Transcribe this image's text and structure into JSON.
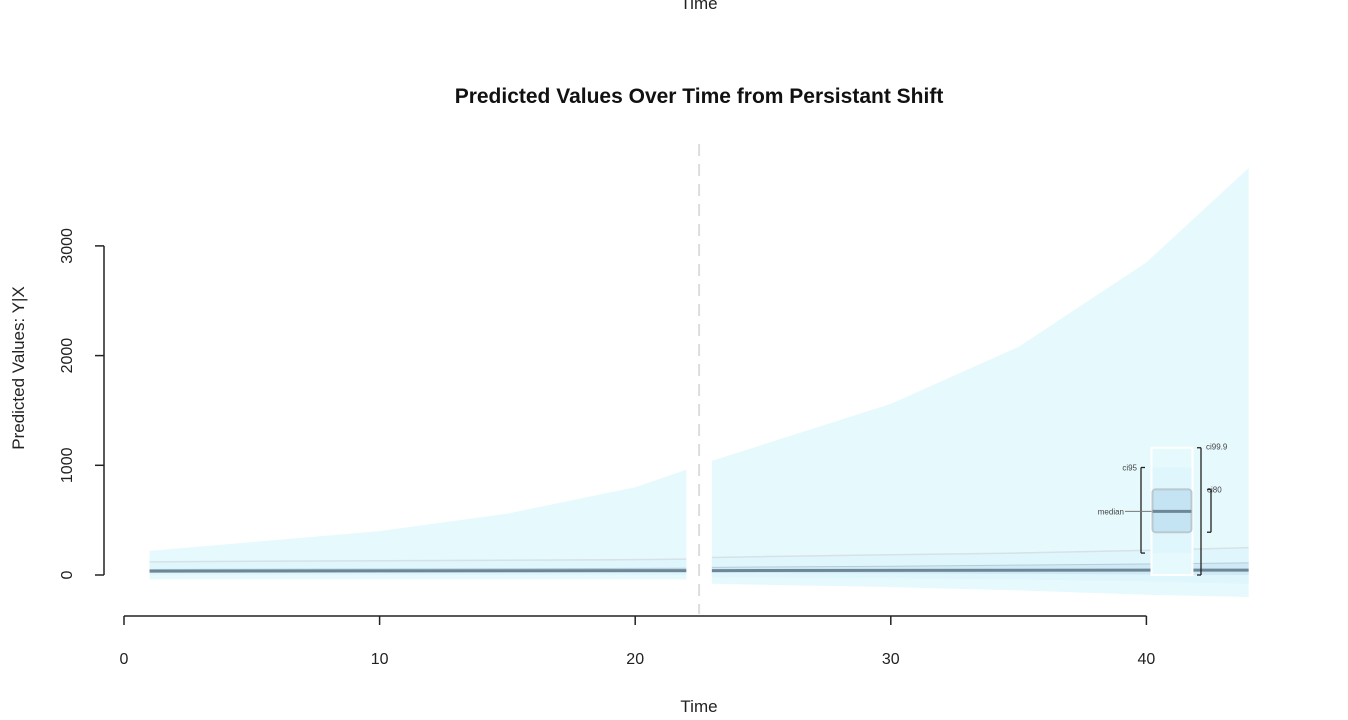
{
  "header": {
    "cropped_xlabel": "Time"
  },
  "chart_data": {
    "type": "area",
    "title": "Predicted Values Over Time from Persistant Shift",
    "xlabel": "Time",
    "ylabel": "Predicted Values: Y|X",
    "xlim": [
      0,
      44
    ],
    "ylim": [
      -200,
      3700
    ],
    "xticks": [
      0,
      10,
      20,
      30,
      40
    ],
    "yticks": [
      0,
      1000,
      2000,
      3000
    ],
    "shift_time": 22.5,
    "grid": false,
    "colors": {
      "ci99_9": "#e6f9fd",
      "ci95": "#dff6fc",
      "ci80": "#cfeaf6",
      "median": "#6e8797",
      "shift_line": "#dddddd",
      "axis": "#222222"
    },
    "series": [
      {
        "name": "ci99.9",
        "segments": [
          {
            "x": [
              1,
              5,
              10,
              15,
              20,
              22
            ],
            "upper": [
              220,
              300,
              400,
              560,
              800,
              960
            ],
            "lower": [
              -40,
              -40,
              -40,
              -40,
              -40,
              -40
            ]
          },
          {
            "x": [
              23,
              30,
              35,
              40,
              44
            ],
            "upper": [
              1040,
              1560,
              2080,
              2850,
              3710
            ],
            "lower": [
              -80,
              -110,
              -140,
              -180,
              -200
            ]
          }
        ]
      },
      {
        "name": "ci95",
        "segments": [
          {
            "x": [
              1,
              5,
              10,
              15,
              20,
              22
            ],
            "upper": [
              120,
              125,
              130,
              135,
              140,
              145
            ],
            "lower": [
              0,
              0,
              0,
              0,
              0,
              0
            ]
          },
          {
            "x": [
              23,
              30,
              35,
              40,
              44
            ],
            "upper": [
              160,
              185,
              200,
              225,
              250
            ],
            "lower": [
              -20,
              -30,
              -40,
              -60,
              -80
            ]
          }
        ]
      },
      {
        "name": "ci80",
        "segments": [
          {
            "x": [
              1,
              5,
              10,
              15,
              20,
              22
            ],
            "upper": [
              50,
              52,
              55,
              57,
              60,
              62
            ],
            "lower": [
              20,
              20,
              20,
              20,
              20,
              20
            ]
          },
          {
            "x": [
              23,
              30,
              35,
              40,
              44
            ],
            "upper": [
              70,
              80,
              90,
              100,
              110
            ],
            "lower": [
              20,
              15,
              10,
              5,
              0
            ]
          }
        ]
      },
      {
        "name": "median",
        "segments": [
          {
            "x": [
              1,
              22
            ],
            "y": [
              35,
              40
            ]
          },
          {
            "x": [
              23,
              44
            ],
            "y": [
              40,
              45
            ]
          }
        ]
      }
    ],
    "legend": {
      "placement": "bottom-right",
      "labels": {
        "ci99_9": "ci99.9",
        "ci95": "ci95",
        "ci80": "ci80",
        "median": "median"
      },
      "values": {
        "ci99_9": [
          0,
          1160
        ],
        "ci95": [
          200,
          980
        ],
        "ci80": [
          390,
          780
        ],
        "median": 580
      }
    }
  }
}
